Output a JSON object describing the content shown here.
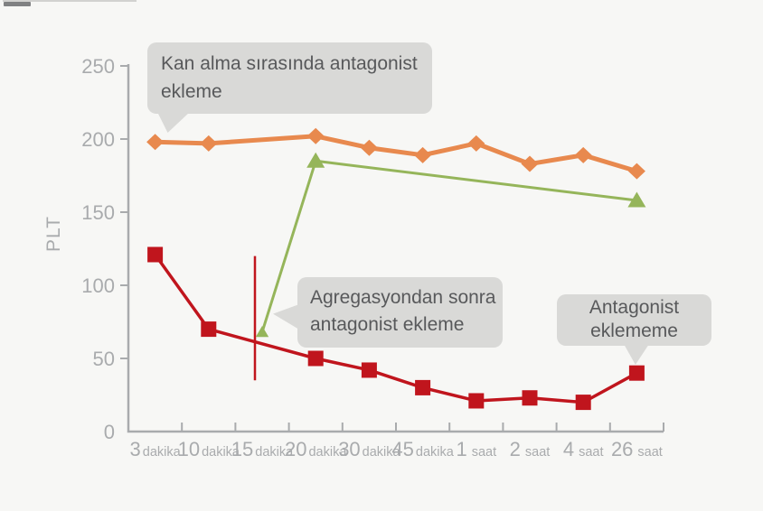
{
  "figure": {
    "background": "#f7f7f5",
    "description": "PLT (platelet) count over time, three treatment series with annotation callouts"
  },
  "chart_data": {
    "type": "line",
    "title": "",
    "xlabel": "",
    "ylabel": "PLT",
    "ylim": [
      0,
      250
    ],
    "yticks": [
      0,
      50,
      100,
      150,
      200,
      250
    ],
    "grid": false,
    "legend_position": "none",
    "axis_color": "#a9abad",
    "x_categories": [
      {
        "num": "3",
        "unit": "dakika"
      },
      {
        "num": "10",
        "unit": "dakika"
      },
      {
        "num": "15",
        "unit": "dakika"
      },
      {
        "num": "20",
        "unit": "dakika"
      },
      {
        "num": "30",
        "unit": "dakika"
      },
      {
        "num": "45",
        "unit": "dakika"
      },
      {
        "num": "1",
        "unit": "saat"
      },
      {
        "num": "2",
        "unit": "saat"
      },
      {
        "num": "4",
        "unit": "saat"
      },
      {
        "num": "26",
        "unit": "saat"
      }
    ],
    "series": [
      {
        "name": "Kan alma sırasında antagonist ekleme",
        "color": "#e8894e",
        "marker": "diamond",
        "line_width": 5,
        "points": [
          {
            "x": 0,
            "y": 198
          },
          {
            "x": 1,
            "y": 197
          },
          {
            "x": 3,
            "y": 202
          },
          {
            "x": 4,
            "y": 194
          },
          {
            "x": 5,
            "y": 189
          },
          {
            "x": 6,
            "y": 197
          },
          {
            "x": 7,
            "y": 183
          },
          {
            "x": 8,
            "y": 189
          },
          {
            "x": 9,
            "y": 178
          }
        ]
      },
      {
        "name": "Agregasyondan sonra antagonist ekleme",
        "color": "#95b55a",
        "marker": "triangle",
        "line_width": 3,
        "points": [
          {
            "x": 2,
            "y": 68,
            "size": 0.72
          },
          {
            "x": 3,
            "y": 185
          },
          {
            "x": 9,
            "y": 158
          }
        ]
      },
      {
        "name": "Antagonist eklememe",
        "color": "#c0151d",
        "marker": "square",
        "line_width": 3.5,
        "points": [
          {
            "x": 0,
            "y": 121
          },
          {
            "x": 1,
            "y": 70
          },
          {
            "x": 3,
            "y": 50
          },
          {
            "x": 4,
            "y": 42
          },
          {
            "x": 5,
            "y": 30
          },
          {
            "x": 6,
            "y": 21
          },
          {
            "x": 7,
            "y": 23
          },
          {
            "x": 8,
            "y": 20
          },
          {
            "x": 9,
            "y": 40
          }
        ]
      }
    ],
    "vline_annotation": {
      "x": 2,
      "y_from": 35,
      "y_to": 120,
      "color": "#c0151d"
    }
  },
  "callouts": [
    {
      "text": "Kan alma sırasında antagonist\nekleme"
    },
    {
      "text": "Agregasyondan sonra\nantagonist ekleme"
    },
    {
      "text": "Antagonist\neklememe"
    }
  ],
  "colors": {
    "callout_bg": "#d9d9d7",
    "callout_text": "#58595b",
    "axis": "#a9abad",
    "orange_series": "#e8894e",
    "green_series": "#95b55a",
    "red_series": "#c0151d"
  }
}
